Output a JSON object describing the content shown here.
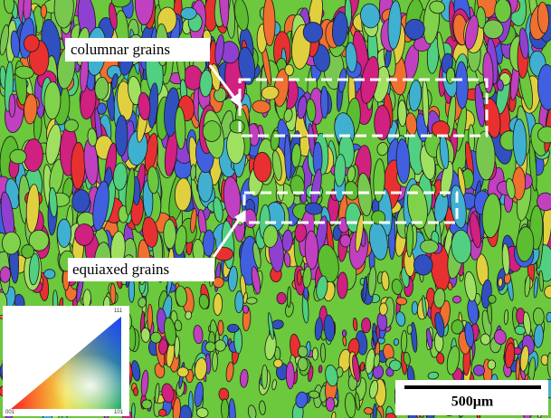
{
  "annotations": {
    "columnar": "columnar grains",
    "equiaxed": "equiaxed grains"
  },
  "scale_bar": {
    "label": "500μm"
  },
  "legend": {
    "corner_001": "001",
    "corner_101": "101",
    "corner_111": "111"
  }
}
